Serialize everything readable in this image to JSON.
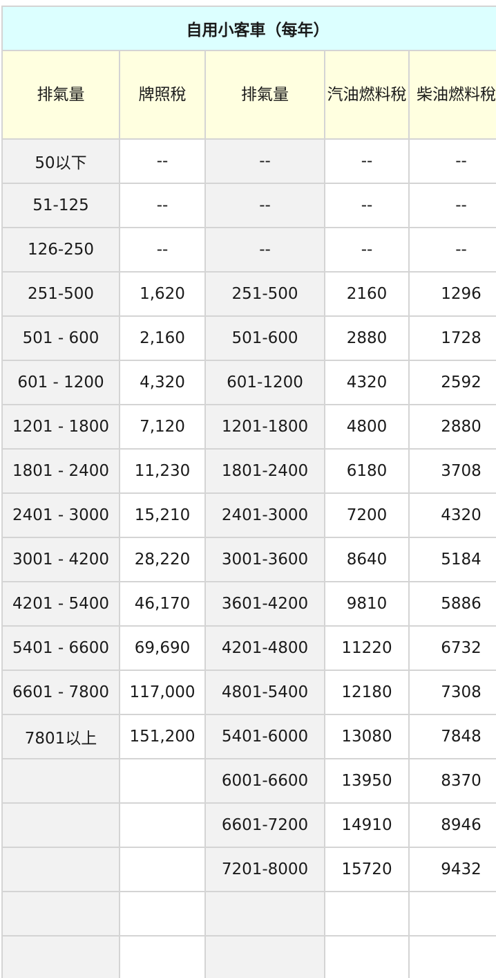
{
  "table": {
    "title": "自用小客車（每年）",
    "headers": [
      "排氣量",
      "牌照稅",
      "排氣量",
      "汽油燃料稅",
      "柴油燃料稅"
    ],
    "rows": [
      [
        "50以下",
        "--",
        "--",
        "--",
        "--"
      ],
      [
        "51-125",
        "--",
        "--",
        "--",
        "--"
      ],
      [
        "126-250",
        "--",
        "--",
        "--",
        "--"
      ],
      [
        "251-500",
        "1,620",
        "251-500",
        "2160",
        "1296"
      ],
      [
        "501 - 600",
        "2,160",
        "501-600",
        "2880",
        "1728"
      ],
      [
        "601 - 1200",
        "4,320",
        "601-1200",
        "4320",
        "2592"
      ],
      [
        "1201 - 1800",
        "7,120",
        "1201-1800",
        "4800",
        "2880"
      ],
      [
        "1801 - 2400",
        "11,230",
        "1801-2400",
        "6180",
        "3708"
      ],
      [
        "2401 - 3000",
        "15,210",
        "2401-3000",
        "7200",
        "4320"
      ],
      [
        "3001 - 4200",
        "28,220",
        "3001-3600",
        "8640",
        "5184"
      ],
      [
        "4201 - 5400",
        "46,170",
        "3601-4200",
        "9810",
        "5886"
      ],
      [
        "5401 - 6600",
        "69,690",
        "4201-4800",
        "11220",
        "6732"
      ],
      [
        "6601 - 7800",
        "117,000",
        "4801-5400",
        "12180",
        "7308"
      ],
      [
        "7801以上",
        "151,200",
        "5401-6000",
        "13080",
        "7848"
      ],
      [
        "",
        "",
        "6001-6600",
        "13950",
        "8370"
      ],
      [
        "",
        "",
        "6601-7200",
        "14910",
        "8946"
      ],
      [
        "",
        "",
        "7201-8000",
        "15720",
        "9432"
      ],
      [
        "",
        "",
        "",
        "",
        ""
      ],
      [
        "",
        "",
        "",
        "",
        ""
      ]
    ]
  }
}
